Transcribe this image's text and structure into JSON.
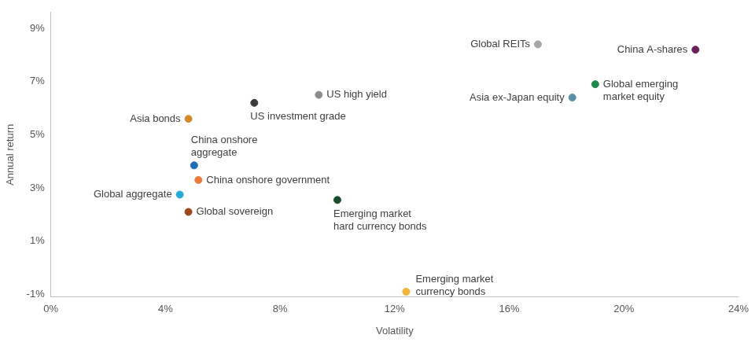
{
  "chart_data": {
    "type": "scatter",
    "x_label": "Volatility",
    "y_label": "Annual return",
    "xlim": [
      0,
      24
    ],
    "xticks": [
      {
        "value": 0,
        "label": "0%"
      },
      {
        "value": 4,
        "label": "4%"
      },
      {
        "value": 8,
        "label": "8%"
      },
      {
        "value": 12,
        "label": "12%"
      },
      {
        "value": 16,
        "label": "16%"
      },
      {
        "value": 20,
        "label": "20%"
      },
      {
        "value": 24,
        "label": "24%"
      }
    ],
    "ylim": [
      -1.1,
      9.6
    ],
    "yticks": [
      {
        "value": -1,
        "label": "-1%"
      },
      {
        "value": 1,
        "label": "1%"
      },
      {
        "value": 3,
        "label": "3%"
      },
      {
        "value": 5,
        "label": "5%"
      },
      {
        "value": 7,
        "label": "7%"
      },
      {
        "value": 9,
        "label": "9%"
      }
    ],
    "grid": false,
    "points": [
      {
        "label": [
          "Global REITs"
        ],
        "x": 17.0,
        "y": 8.4,
        "color": "#a6a6a6"
      },
      {
        "label": [
          "China A-shares"
        ],
        "x": 22.5,
        "y": 8.2,
        "color": "#6b1f5c"
      },
      {
        "label": [
          "Global emerging",
          "market equity"
        ],
        "x": 19.0,
        "y": 6.9,
        "color": "#1e8a4c"
      },
      {
        "label": [
          "Asia ex-Japan equity"
        ],
        "x": 18.2,
        "y": 6.4,
        "color": "#5b8ea6"
      },
      {
        "label": [
          "US high yield"
        ],
        "x": 9.35,
        "y": 6.5,
        "color": "#8c8c8c"
      },
      {
        "label": [
          "US investment grade"
        ],
        "x": 7.1,
        "y": 6.2,
        "color": "#3a3a3a"
      },
      {
        "label": [
          "Asia bonds"
        ],
        "x": 4.8,
        "y": 5.6,
        "color": "#d4892a"
      },
      {
        "label": [
          "China onshore",
          "aggregate"
        ],
        "x": 5.0,
        "y": 3.85,
        "color": "#1f6fb5"
      },
      {
        "label": [
          "China onshore government"
        ],
        "x": 5.15,
        "y": 3.3,
        "color": "#ee7a3a"
      },
      {
        "label": [
          "Global aggregate"
        ],
        "x": 4.5,
        "y": 2.75,
        "color": "#27a9d6"
      },
      {
        "label": [
          "Global sovereign"
        ],
        "x": 4.8,
        "y": 2.1,
        "color": "#9b4a1f"
      },
      {
        "label": [
          "Emerging market",
          "hard currency bonds"
        ],
        "x": 10.0,
        "y": 2.55,
        "color": "#1a4d2e"
      },
      {
        "label": [
          "Emerging market",
          "currency bonds"
        ],
        "x": 12.4,
        "y": -0.9,
        "color": "#f3b23a"
      }
    ]
  }
}
